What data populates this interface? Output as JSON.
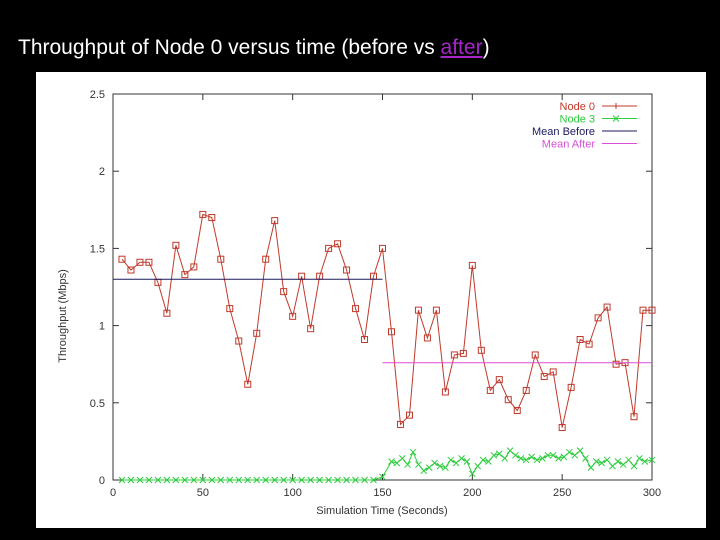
{
  "slide": {
    "title_main": "Throughput of Node 0 versus time (before vs ",
    "title_link": "after",
    "title_end": ")"
  },
  "colors": {
    "background": "#000000",
    "title": "#ffffff",
    "link": "#a626c9",
    "node0": "#c0392b",
    "node3": "#2ecc40",
    "mean_before": "#1a1a5e",
    "mean_after": "#d94fd9"
  },
  "chart_data": {
    "type": "line",
    "title": "",
    "xlabel": "Simulation Time (Seconds)",
    "ylabel": "Throughput (Mbps)",
    "xlim": [
      0,
      300
    ],
    "ylim": [
      0,
      2.5
    ],
    "xticks": [
      0,
      50,
      100,
      150,
      200,
      250,
      300
    ],
    "yticks": [
      0,
      0.5,
      1,
      1.5,
      2,
      2.5
    ],
    "xtick_labels": [
      "0",
      "50",
      "100",
      "150",
      "200",
      "250",
      "300"
    ],
    "ytick_labels": [
      "0",
      "0.5",
      "1",
      "1.5",
      "2",
      "2.5"
    ],
    "grid": false,
    "legend_position": "top-right",
    "series": [
      {
        "name": "Node 0",
        "color": "#c0392b",
        "marker": "plus-square",
        "x": [
          5,
          10,
          15,
          20,
          25,
          30,
          35,
          40,
          45,
          50,
          55,
          60,
          65,
          70,
          75,
          80,
          85,
          90,
          95,
          100,
          105,
          110,
          115,
          120,
          125,
          130,
          135,
          140,
          145,
          150,
          155,
          160,
          165,
          170,
          175,
          180,
          185,
          190,
          195,
          200,
          205,
          210,
          215,
          220,
          225,
          230,
          235,
          240,
          245,
          250,
          255,
          260,
          265,
          270,
          275,
          280,
          285,
          290,
          295,
          300
        ],
        "y": [
          1.43,
          1.36,
          1.41,
          1.41,
          1.28,
          1.08,
          1.52,
          1.33,
          1.38,
          1.72,
          1.7,
          1.43,
          1.11,
          0.9,
          0.62,
          0.95,
          1.43,
          1.68,
          1.22,
          1.06,
          1.32,
          0.98,
          1.32,
          1.5,
          1.53,
          1.36,
          1.11,
          0.91,
          1.32,
          1.5,
          0.96,
          0.36,
          0.42,
          1.1,
          0.92,
          1.1,
          0.57,
          0.81,
          0.82,
          1.39,
          0.84,
          0.58,
          0.65,
          0.52,
          0.45,
          0.58,
          0.81,
          0.67,
          0.7,
          0.34,
          0.6,
          0.91,
          0.88,
          1.05,
          1.12,
          0.75,
          0.76,
          0.41,
          1.1,
          1.1
        ]
      },
      {
        "name": "Node 3",
        "color": "#2ecc40",
        "marker": "x",
        "x": [
          5,
          10,
          15,
          20,
          25,
          30,
          35,
          40,
          45,
          50,
          55,
          60,
          65,
          70,
          75,
          80,
          85,
          90,
          95,
          100,
          105,
          110,
          115,
          120,
          125,
          130,
          135,
          140,
          145,
          150,
          155,
          158,
          161,
          164,
          167,
          170,
          173,
          176,
          179,
          182,
          185,
          188,
          191,
          194,
          197,
          200,
          203,
          206,
          209,
          212,
          215,
          218,
          221,
          224,
          227,
          230,
          233,
          236,
          239,
          242,
          245,
          248,
          251,
          254,
          257,
          260,
          263,
          266,
          269,
          272,
          275,
          278,
          281,
          284,
          287,
          290,
          293,
          296,
          300
        ],
        "y": [
          0,
          0,
          0,
          0,
          0,
          0,
          0,
          0,
          0,
          0,
          0,
          0,
          0,
          0,
          0,
          0,
          0,
          0,
          0,
          0,
          0,
          0,
          0,
          0,
          0,
          0,
          0,
          0,
          0,
          0.02,
          0.12,
          0.11,
          0.14,
          0.1,
          0.18,
          0.1,
          0.06,
          0.08,
          0.11,
          0.09,
          0.08,
          0.13,
          0.11,
          0.14,
          0.12,
          0.04,
          0.09,
          0.13,
          0.12,
          0.16,
          0.17,
          0.14,
          0.19,
          0.16,
          0.14,
          0.13,
          0.15,
          0.13,
          0.14,
          0.16,
          0.16,
          0.14,
          0.15,
          0.18,
          0.16,
          0.19,
          0.14,
          0.08,
          0.12,
          0.11,
          0.13,
          0.09,
          0.12,
          0.1,
          0.13,
          0.09,
          0.14,
          0.12,
          0.13
        ]
      },
      {
        "name": "Mean Before",
        "color": "#1a1a5e",
        "style": "line",
        "x": [
          0,
          150
        ],
        "y": [
          1.3,
          1.3
        ]
      },
      {
        "name": "Mean After",
        "color": "#d94fd9",
        "style": "line",
        "x": [
          150,
          300
        ],
        "y": [
          0.76,
          0.76
        ]
      }
    ]
  }
}
